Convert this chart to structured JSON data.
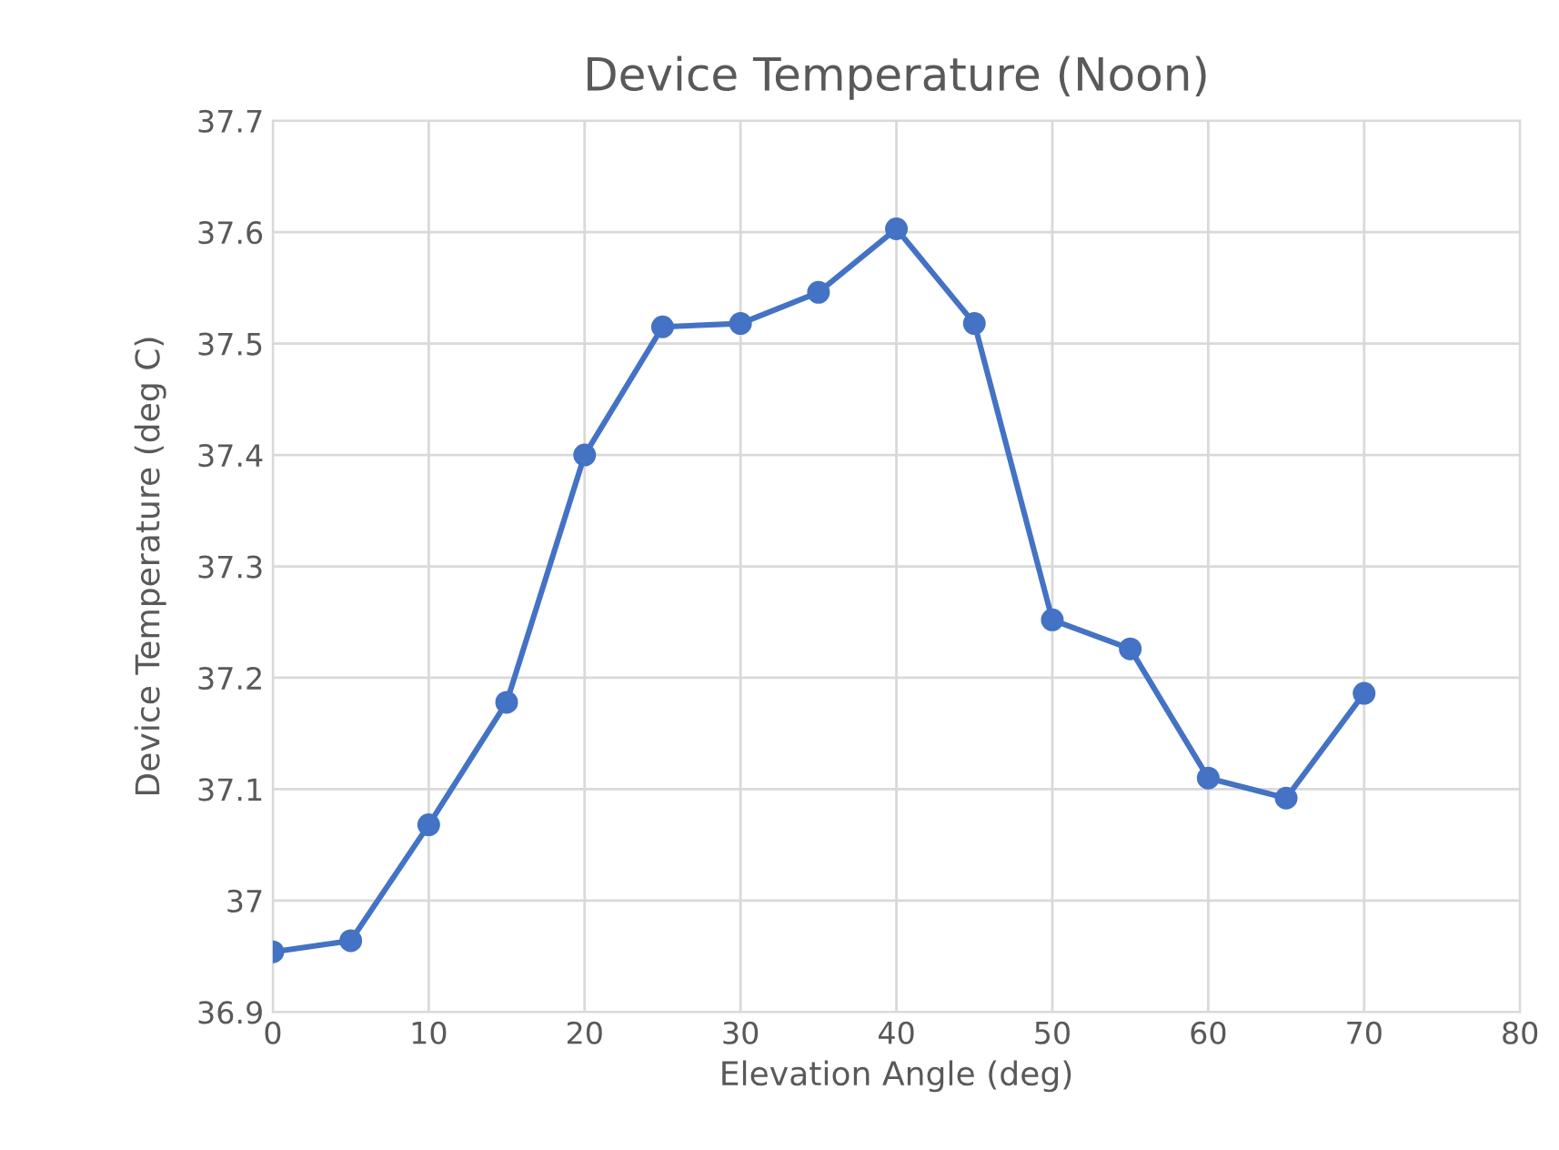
{
  "chart_data": {
    "type": "line",
    "title": "Device Temperature (Noon)",
    "xlabel": "Elevation Angle (deg)",
    "ylabel": "Device Temperature (deg C)",
    "x": [
      0,
      5,
      10,
      15,
      20,
      25,
      30,
      35,
      40,
      45,
      50,
      55,
      60,
      65,
      70
    ],
    "series": [
      {
        "color": "#4472c4",
        "values": [
          36.954,
          36.964,
          37.068,
          37.178,
          37.4,
          37.515,
          37.518,
          37.546,
          37.603,
          37.518,
          37.252,
          37.226,
          37.11,
          37.092,
          37.186
        ]
      }
    ],
    "xlim": [
      0,
      80
    ],
    "xticks": [
      0,
      10,
      20,
      30,
      40,
      50,
      60,
      70,
      80
    ],
    "ylim": [
      36.9,
      37.7
    ],
    "yticks": [
      36.9,
      37,
      37.1,
      37.2,
      37.3,
      37.4,
      37.5,
      37.6,
      37.7
    ],
    "grid": true,
    "marker": "circle",
    "line_style": "solid"
  }
}
